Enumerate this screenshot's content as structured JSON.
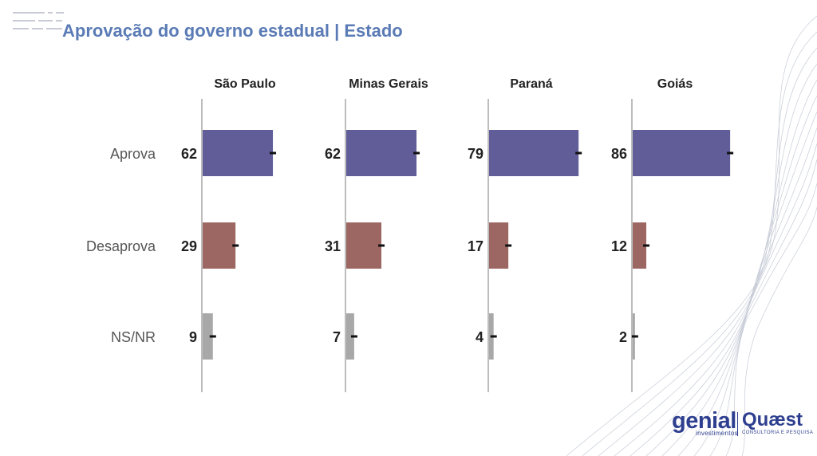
{
  "header": {
    "title": "Aprovação do governo estadual | Estado"
  },
  "logos": {
    "genial": "genial",
    "genial_sub": "investimentos",
    "quaest": "Quæst",
    "quaest_sub": "CONSULTORIA E PESQUISA"
  },
  "chart_data": {
    "type": "bar",
    "orientation": "horizontal",
    "categories": [
      "Aprova",
      "Desaprova",
      "NS/NR"
    ],
    "panels": [
      {
        "name": "São Paulo",
        "values": [
          62,
          29,
          9
        ]
      },
      {
        "name": "Minas Gerais",
        "values": [
          62,
          31,
          7
        ]
      },
      {
        "name": "Paraná",
        "values": [
          79,
          17,
          4
        ]
      },
      {
        "name": "Goiás",
        "values": [
          86,
          12,
          2
        ]
      }
    ],
    "colors": [
      "#605d99",
      "#9c6762",
      "#a8a8a8"
    ],
    "error_bars": true,
    "xlim": [
      0,
      100
    ],
    "grid": false,
    "legend": "none"
  }
}
